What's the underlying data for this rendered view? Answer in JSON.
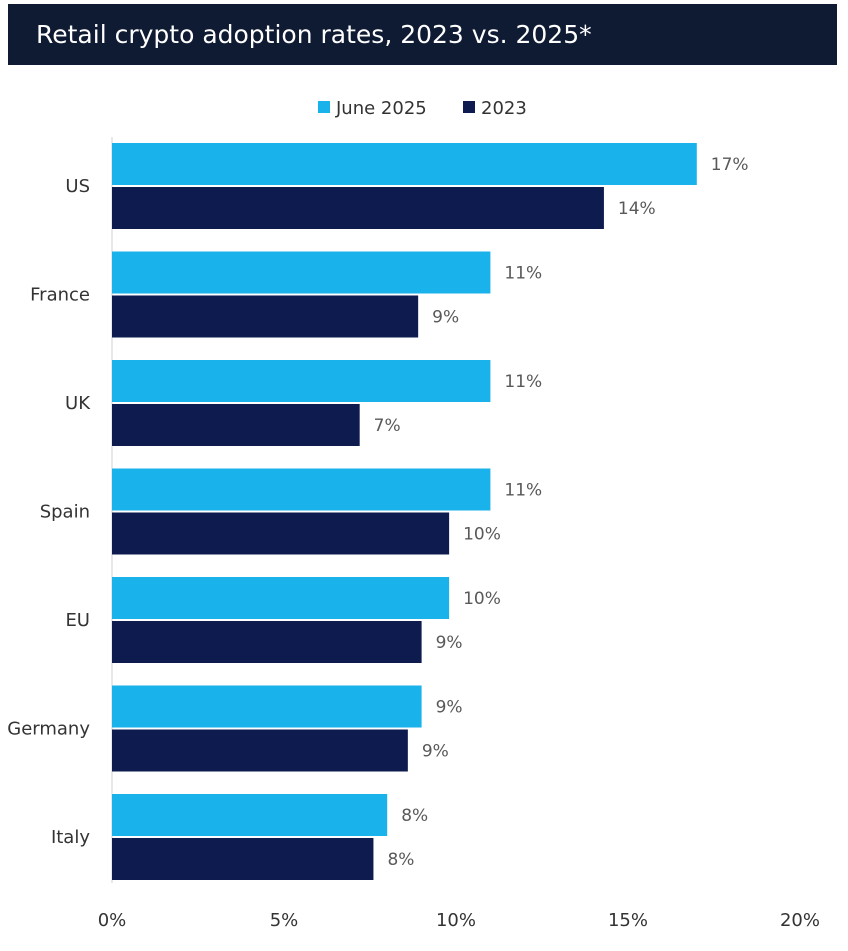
{
  "chart_data": {
    "type": "bar",
    "orientation": "horizontal",
    "title": "Retail crypto adoption rates, 2023 vs. 2025*",
    "categories": [
      "US",
      "France",
      "UK",
      "Spain",
      "EU",
      "Germany",
      "Italy"
    ],
    "series": [
      {
        "name": "June 2025",
        "color": "#1ab2ea",
        "values": [
          17,
          11,
          11,
          11,
          9.8,
          9,
          8
        ],
        "labels": [
          "17%",
          "11%",
          "11%",
          "11%",
          "10%",
          "9%",
          "8%"
        ]
      },
      {
        "name": "2023",
        "color": "#0d1b4f",
        "values": [
          14.3,
          8.9,
          7.2,
          9.8,
          9,
          8.6,
          7.6
        ],
        "labels": [
          "14%",
          "9%",
          "7%",
          "10%",
          "9%",
          "9%",
          "8%"
        ]
      }
    ],
    "xlim": [
      0,
      20
    ],
    "xticks": [
      0,
      5,
      10,
      15,
      20
    ],
    "xtick_labels": [
      "0%",
      "5%",
      "10%",
      "15%",
      "20%"
    ],
    "legend_position": "top-center",
    "grid": false
  }
}
